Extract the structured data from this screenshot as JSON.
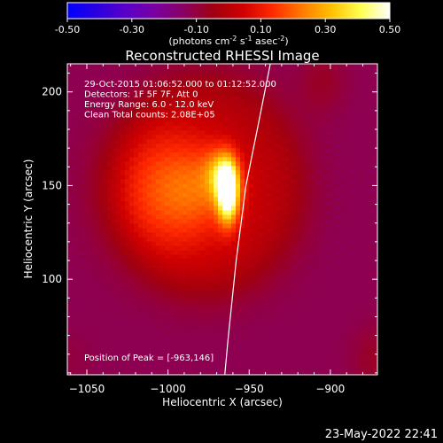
{
  "colorbar": {
    "tick_labels": [
      "-0.50",
      "-0.30",
      "-0.10",
      "0.10",
      "0.30",
      "0.50"
    ],
    "tick_values": [
      -0.5,
      -0.3,
      -0.1,
      0.1,
      0.3,
      0.5
    ],
    "range": [
      -0.5,
      0.5
    ],
    "unit_label": "(photons cm",
    "unit_exp1": "-2",
    "unit_mid": " s",
    "unit_exp2": "-1",
    "unit_mid2": " asec",
    "unit_exp3": "-2",
    "unit_close": ")",
    "colors": [
      "#0000ff",
      "#2a00e0",
      "#5a00c8",
      "#7a00a0",
      "#8a0060",
      "#a00010",
      "#d00000",
      "#ff2a00",
      "#ff7a00",
      "#ffc000",
      "#ffff50",
      "#ffffff"
    ]
  },
  "chart_data": {
    "type": "heatmap",
    "title": "Reconstructed RHESSI Image",
    "xlabel": "Heliocentric X (arcsec)",
    "ylabel": "Heliocentric Y (arcsec)",
    "xlim": [
      -1062,
      -871
    ],
    "ylim": [
      49,
      215
    ],
    "xticks": [
      -1050,
      -1000,
      -950,
      -900
    ],
    "xtick_labels": [
      "−1050",
      "−1000",
      "−950",
      "−900"
    ],
    "yticks": [
      100,
      150,
      200
    ],
    "ytick_labels": [
      "100",
      "150",
      "200"
    ],
    "info_lines": [
      "29-Oct-2015 01:06:52.000 to 01:12:52.000",
      "Detectors: 1F 5F 7F, Att 0",
      "Energy Range: 6.0 - 12.0 keV",
      "Clean    Total counts: 2.08E+05"
    ],
    "peak_label": "Position of Peak = [-963,146]",
    "peak": [
      -963,
      146
    ],
    "sources": [
      {
        "x": -963,
        "y": 146,
        "amp": 0.52,
        "sx": 4.5,
        "sy": 11
      },
      {
        "x": -967,
        "y": 156,
        "amp": 0.22,
        "sx": 7,
        "sy": 9
      },
      {
        "x": -987,
        "y": 148,
        "amp": 0.34,
        "sx": 28,
        "sy": 24
      },
      {
        "x": -905,
        "y": 205,
        "amp": 0.05,
        "sx": 10,
        "sy": 12
      },
      {
        "x": -873,
        "y": 58,
        "amp": 0.05,
        "sx": 10,
        "sy": 12
      },
      {
        "x": -1060,
        "y": 58,
        "amp": 0.02,
        "sx": 10,
        "sy": 10
      }
    ],
    "background": -0.12,
    "ring": {
      "x": -975,
      "y": 150,
      "r": 46,
      "w": 14,
      "amp": 0.07
    },
    "limb": [
      [
        -937,
        215
      ],
      [
        -945,
        180
      ],
      [
        -952,
        150
      ],
      [
        -958,
        110
      ],
      [
        -963,
        68
      ],
      [
        -965,
        49
      ]
    ]
  },
  "footer_date": "23-May-2022 22:41"
}
